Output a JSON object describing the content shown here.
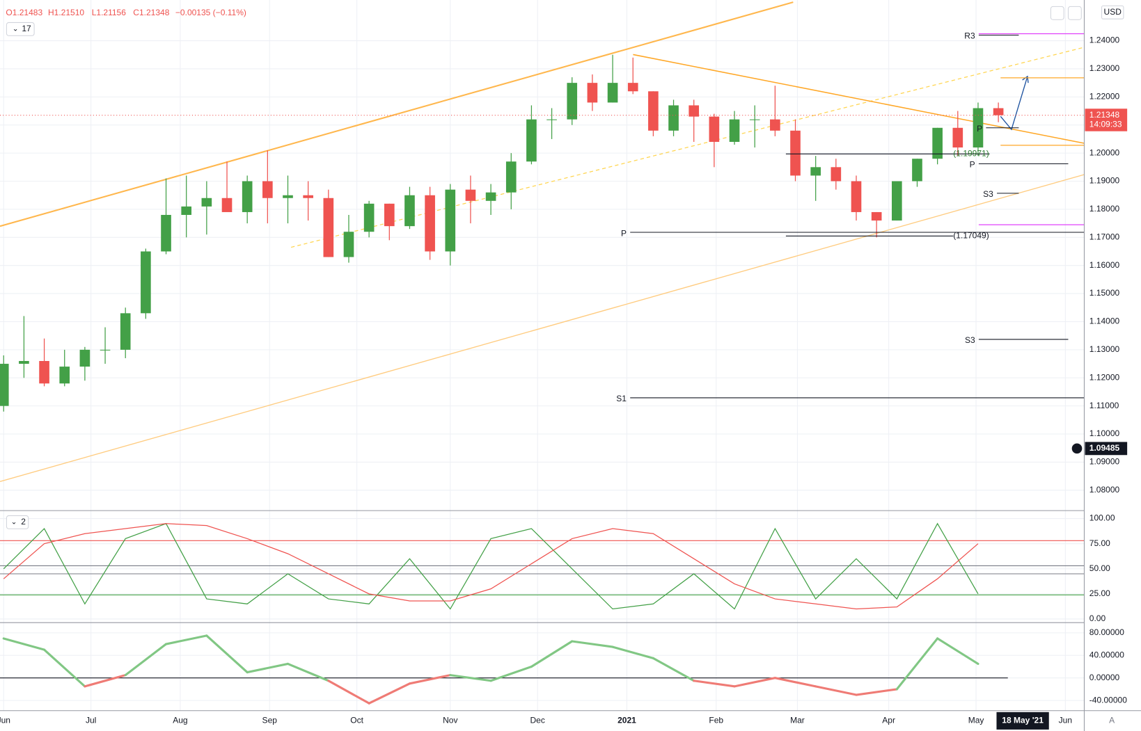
{
  "header": {
    "open": "O1.21483",
    "high": "H1.21510",
    "low": "L1.21156",
    "close": "C1.21348",
    "change": "−0.00135 (−0.11%)",
    "interval_badge": "17",
    "currency": "USD",
    "auto": "A"
  },
  "price_tag": {
    "value": 1.21348,
    "label": "1.21348",
    "countdown": "14:09:33",
    "color": "#ef5350"
  },
  "cursor_tag": {
    "value": 1.09485,
    "label": "1.09485"
  },
  "date_tag": {
    "value": 50.2,
    "label": "18 May '21"
  },
  "chart_data": [
    {
      "type": "candlestick",
      "up_color": "#43a047",
      "down_color": "#ef5350",
      "grid": true,
      "categories": [
        null,
        null,
        null,
        null,
        null,
        null,
        null,
        null,
        null,
        null,
        null,
        null,
        null,
        null,
        null,
        null,
        null,
        null,
        null,
        null,
        null,
        null,
        null,
        null,
        null,
        null,
        null,
        null,
        null,
        null,
        null,
        null,
        null,
        null,
        null,
        null,
        null,
        null,
        null,
        null,
        null,
        null,
        null,
        null,
        null,
        null,
        null,
        null,
        null,
        null
      ],
      "open": [
        1.11,
        1.125,
        1.126,
        1.118,
        1.124,
        1.13,
        1.13,
        1.143,
        1.165,
        1.178,
        1.181,
        1.184,
        1.179,
        1.19,
        1.184,
        1.185,
        1.184,
        1.163,
        1.172,
        1.182,
        1.174,
        1.185,
        1.165,
        1.187,
        1.183,
        1.186,
        1.197,
        1.212,
        1.212,
        1.225,
        1.218,
        1.225,
        1.222,
        1.208,
        1.217,
        1.213,
        1.204,
        1.212,
        1.212,
        1.208,
        1.192,
        1.195,
        1.19,
        1.179,
        1.176,
        1.19,
        1.198,
        1.209,
        1.202,
        1.216
      ],
      "high": [
        1.128,
        1.142,
        1.134,
        1.13,
        1.131,
        1.138,
        1.145,
        1.166,
        1.191,
        1.192,
        1.19,
        1.197,
        1.192,
        1.201,
        1.192,
        1.19,
        1.187,
        1.178,
        1.183,
        1.182,
        1.188,
        1.188,
        1.189,
        1.192,
        1.189,
        1.2,
        1.217,
        1.216,
        1.227,
        1.228,
        1.235,
        1.234,
        1.222,
        1.219,
        1.219,
        1.214,
        1.215,
        1.217,
        1.224,
        1.212,
        1.199,
        1.198,
        1.192,
        1.179,
        1.19,
        1.198,
        1.209,
        1.215,
        1.218,
        1.218
      ],
      "low": [
        1.108,
        1.12,
        1.117,
        1.117,
        1.119,
        1.125,
        1.127,
        1.141,
        1.164,
        1.17,
        1.171,
        1.18,
        1.175,
        1.175,
        1.175,
        1.176,
        1.163,
        1.161,
        1.17,
        1.169,
        1.173,
        1.162,
        1.16,
        1.175,
        1.178,
        1.18,
        1.196,
        1.205,
        1.21,
        1.215,
        1.218,
        1.221,
        1.206,
        1.206,
        1.204,
        1.195,
        1.203,
        1.202,
        1.206,
        1.19,
        1.183,
        1.187,
        1.176,
        1.17,
        1.176,
        1.188,
        1.196,
        1.199,
        1.199,
        1.211
      ],
      "close": [
        1.125,
        1.126,
        1.118,
        1.124,
        1.13,
        1.13,
        1.143,
        1.165,
        1.178,
        1.181,
        1.184,
        1.179,
        1.19,
        1.184,
        1.185,
        1.184,
        1.163,
        1.172,
        1.182,
        1.174,
        1.185,
        1.165,
        1.187,
        1.183,
        1.186,
        1.197,
        1.212,
        1.212,
        1.225,
        1.218,
        1.225,
        1.222,
        1.208,
        1.217,
        1.213,
        1.204,
        1.212,
        1.212,
        1.208,
        1.192,
        1.195,
        1.19,
        1.179,
        1.176,
        1.19,
        1.198,
        1.209,
        1.202,
        1.216,
        1.21348
      ],
      "xlim": [
        -0.18,
        53.23
      ],
      "xticks": [
        {
          "value": 0,
          "label": "Jun"
        },
        {
          "value": 4.3,
          "label": "Jul"
        },
        {
          "value": 8.7,
          "label": "Aug"
        },
        {
          "value": 13.1,
          "label": "Sep"
        },
        {
          "value": 17.4,
          "label": "Oct"
        },
        {
          "value": 22,
          "label": "Nov"
        },
        {
          "value": 26.3,
          "label": "Dec"
        },
        {
          "value": 30.7,
          "label": "2021"
        },
        {
          "value": 35.1,
          "label": "Feb"
        },
        {
          "value": 39.1,
          "label": "Mar"
        },
        {
          "value": 43.6,
          "label": "Apr"
        },
        {
          "value": 47.9,
          "label": "May"
        },
        {
          "value": 52.3,
          "label": "Jun"
        }
      ],
      "ylim": [
        1.073,
        1.2545
      ],
      "yticks": [
        {
          "value": 1.08,
          "label": "1.08000"
        },
        {
          "value": 1.09,
          "label": "1.09000"
        },
        {
          "value": 1.1,
          "label": "1.10000"
        },
        {
          "value": 1.11,
          "label": "1.11000"
        },
        {
          "value": 1.12,
          "label": "1.12000"
        },
        {
          "value": 1.13,
          "label": "1.13000"
        },
        {
          "value": 1.14,
          "label": "1.14000"
        },
        {
          "value": 1.15,
          "label": "1.15000"
        },
        {
          "value": 1.16,
          "label": "1.16000"
        },
        {
          "value": 1.17,
          "label": "1.17000"
        },
        {
          "value": 1.18,
          "label": "1.18000"
        },
        {
          "value": 1.19,
          "label": "1.19000"
        },
        {
          "value": 1.2,
          "label": "1.20000"
        },
        {
          "value": 1.21,
          "label": "1.21000"
        },
        {
          "value": 1.22,
          "label": "1.22000"
        },
        {
          "value": 1.23,
          "label": "1.23000"
        },
        {
          "value": 1.24,
          "label": "1.24000"
        }
      ],
      "levels": [
        {
          "label": "R3",
          "value": 1.242
        },
        {
          "label": "P",
          "value": 1.209
        },
        {
          "label": "P",
          "value": 1.1962
        },
        {
          "label": "S3",
          "value": 1.1857
        },
        {
          "label": "P",
          "value": 1.1718
        },
        {
          "label": "S3",
          "value": 1.1337
        },
        {
          "label": "S1",
          "value": 1.1129
        }
      ],
      "supports": [
        {
          "label": "(1.19971)",
          "value": 1.19971
        },
        {
          "label": "(1.17049)",
          "value": 1.17049
        }
      ],
      "lines": [
        {
          "value": 1.2268,
          "color": "#ffa726"
        },
        {
          "value": 1.2028,
          "color": "#ffa726"
        },
        {
          "value": 1.2425,
          "color": "#e040fb"
        },
        {
          "value": 1.1745,
          "color": "#e040fb"
        }
      ]
    },
    {
      "type": "line",
      "badge": "2",
      "x": [
        0,
        2,
        4,
        6,
        8,
        10,
        12,
        14,
        16,
        18,
        20,
        22,
        24,
        26,
        28,
        30,
        32,
        34,
        36,
        38,
        40,
        42,
        44,
        46,
        48
      ],
      "series": [
        {
          "color": "#43a047",
          "values": [
            50,
            90,
            15,
            80,
            95,
            20,
            15,
            45,
            20,
            15,
            60,
            10,
            80,
            90,
            50,
            10,
            15,
            45,
            10,
            90,
            20,
            60,
            20,
            95,
            25
          ]
        },
        {
          "color": "#ef5350",
          "values": [
            40,
            75,
            85,
            90,
            95,
            93,
            80,
            65,
            45,
            25,
            18,
            18,
            30,
            55,
            80,
            90,
            85,
            60,
            35,
            20,
            15,
            10,
            12,
            40,
            75
          ]
        }
      ],
      "levels": [
        {
          "value": 78,
          "color": "#ef5350"
        },
        {
          "value": 53,
          "color": "#787b86"
        },
        {
          "value": 45,
          "color": "#787b86"
        },
        {
          "value": 24,
          "color": "#43a047"
        }
      ],
      "ylim": [
        -2.9,
        107.2
      ],
      "yticks": [
        {
          "value": 0,
          "label": "0.00"
        },
        {
          "value": 25,
          "label": "25.00"
        },
        {
          "value": 50,
          "label": "50.00"
        },
        {
          "value": 75,
          "label": "75.00"
        },
        {
          "value": 100,
          "label": "100.00"
        }
      ]
    },
    {
      "type": "line",
      "x": [
        0,
        2,
        4,
        6,
        8,
        10,
        12,
        14,
        16,
        18,
        20,
        22,
        24,
        26,
        28,
        30,
        32,
        34,
        36,
        38,
        40,
        42,
        44,
        46,
        48
      ],
      "values": [
        70,
        50,
        -15,
        5,
        60,
        75,
        10,
        25,
        -5,
        -45,
        -10,
        5,
        -5,
        20,
        65,
        55,
        35,
        -5,
        -15,
        0,
        -15,
        -30,
        -20,
        70,
        25
      ],
      "positive_color": "#81c784",
      "negative_color": "#ef7b75",
      "baseline": 0,
      "ylim": [
        -58,
        96.8
      ],
      "yticks": [
        {
          "value": -40,
          "label": "-40.00000"
        },
        {
          "value": 0,
          "label": "0.00000"
        },
        {
          "value": 40,
          "label": "40.00000"
        },
        {
          "value": 80,
          "label": "80.00000"
        }
      ]
    }
  ]
}
